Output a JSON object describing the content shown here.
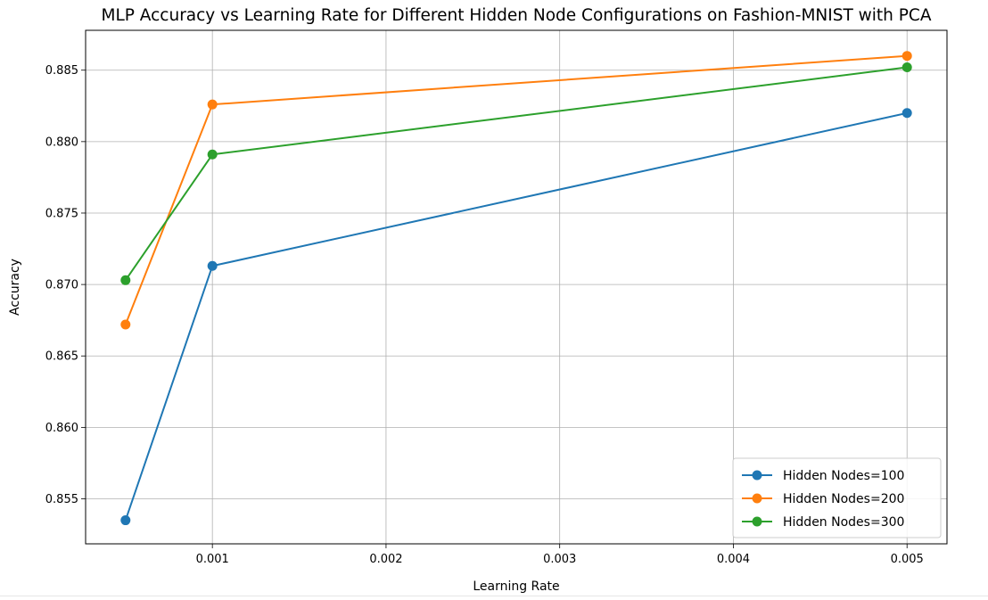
{
  "chart_data": {
    "type": "line",
    "title": "MLP Accuracy vs Learning Rate for Different Hidden Node Configurations on Fashion-MNIST with PCA",
    "xlabel": "Learning Rate",
    "ylabel": "Accuracy",
    "xlim": [
      0.00027,
      0.00523
    ],
    "ylim": [
      0.85185,
      0.88779
    ],
    "xticks": [
      0.001,
      0.002,
      0.003,
      0.004,
      0.005
    ],
    "xtick_labels": [
      "0.001",
      "0.002",
      "0.003",
      "0.004",
      "0.005"
    ],
    "yticks": [
      0.855,
      0.86,
      0.865,
      0.87,
      0.875,
      0.88,
      0.885
    ],
    "ytick_labels": [
      "0.855",
      "0.860",
      "0.865",
      "0.870",
      "0.875",
      "0.880",
      "0.885"
    ],
    "grid": true,
    "legend_position": "lower right",
    "x": [
      0.0005,
      0.001,
      0.005
    ],
    "series": [
      {
        "name": "Hidden Nodes=100",
        "color": "#1f77b4",
        "values": [
          0.8535,
          0.8713,
          0.882
        ]
      },
      {
        "name": "Hidden Nodes=200",
        "color": "#ff7f0e",
        "values": [
          0.8672,
          0.8826,
          0.886
        ]
      },
      {
        "name": "Hidden Nodes=300",
        "color": "#2ca02c",
        "values": [
          0.8703,
          0.8791,
          0.8852
        ]
      }
    ]
  }
}
